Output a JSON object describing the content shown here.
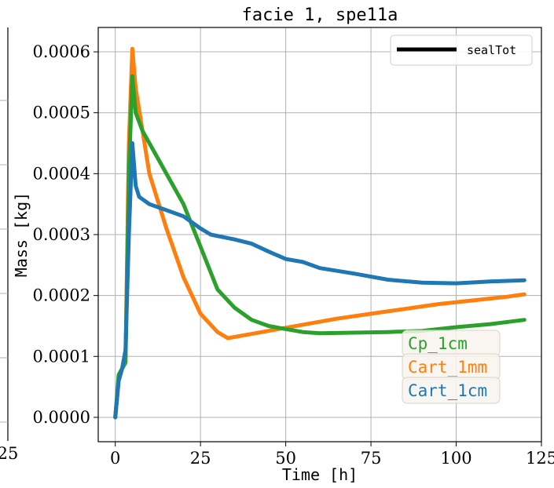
{
  "chart_data": {
    "type": "line",
    "title": "facie 1, spe11a",
    "xlabel": "Time [h]",
    "ylabel": "Mass [kg]",
    "xlim": [
      -5,
      125
    ],
    "ylim": [
      -4e-05,
      0.00064
    ],
    "x_ticks": [
      0,
      25,
      50,
      75,
      100,
      125
    ],
    "x_tick_labels": [
      "0",
      "25",
      "50",
      "75",
      "100",
      "125"
    ],
    "y_ticks": [
      0.0,
      0.0001,
      0.0002,
      0.0003,
      0.0004,
      0.0005,
      0.0006
    ],
    "y_tick_labels": [
      "0.0000",
      "0.0001",
      "0.0002",
      "0.0003",
      "0.0004",
      "0.0005",
      "0.0006"
    ],
    "left_panel_tick_label": "25",
    "grid": true,
    "legend_top": {
      "label": "sealTot",
      "color": "#000000",
      "placement": "top-right"
    },
    "series": [
      {
        "name": "Cp_1cm",
        "color": "#2ca02c",
        "points": [
          [
            0,
            0.0
          ],
          [
            1,
            7e-05
          ],
          [
            2,
            8e-05
          ],
          [
            3,
            9e-05
          ],
          [
            4,
            0.0004
          ],
          [
            5,
            0.00056
          ],
          [
            6,
            0.0005
          ],
          [
            8,
            0.00047
          ],
          [
            10,
            0.00045
          ],
          [
            15,
            0.0004
          ],
          [
            20,
            0.00035
          ],
          [
            25,
            0.00028
          ],
          [
            30,
            0.00021
          ],
          [
            35,
            0.00018
          ],
          [
            40,
            0.00016
          ],
          [
            45,
            0.00015
          ],
          [
            50,
            0.000145
          ],
          [
            55,
            0.00014
          ],
          [
            60,
            0.000138
          ],
          [
            70,
            0.000139
          ],
          [
            80,
            0.00014
          ],
          [
            90,
            0.000142
          ],
          [
            100,
            0.000148
          ],
          [
            110,
            0.000153
          ],
          [
            120,
            0.00016
          ]
        ]
      },
      {
        "name": "Cart_1mm",
        "color": "#ff7f0e",
        "points": [
          [
            0,
            0.0
          ],
          [
            1,
            6e-05
          ],
          [
            2,
            8e-05
          ],
          [
            3,
            9e-05
          ],
          [
            4,
            0.00045
          ],
          [
            5,
            0.000605
          ],
          [
            6,
            0.00054
          ],
          [
            8,
            0.00047
          ],
          [
            10,
            0.0004
          ],
          [
            15,
            0.00031
          ],
          [
            20,
            0.00023
          ],
          [
            25,
            0.00017
          ],
          [
            30,
            0.00014
          ],
          [
            33,
            0.00013
          ],
          [
            36,
            0.000133
          ],
          [
            45,
            0.000142
          ],
          [
            55,
            0.000152
          ],
          [
            65,
            0.000162
          ],
          [
            75,
            0.00017
          ],
          [
            85,
            0.000178
          ],
          [
            95,
            0.000186
          ],
          [
            105,
            0.000192
          ],
          [
            115,
            0.000198
          ],
          [
            120,
            0.000202
          ]
        ]
      },
      {
        "name": "Cart_1cm",
        "color": "#1f77b4",
        "points": [
          [
            0,
            0.0
          ],
          [
            1,
            6e-05
          ],
          [
            2,
            8e-05
          ],
          [
            3,
            0.00011
          ],
          [
            4,
            0.0003
          ],
          [
            5,
            0.00045
          ],
          [
            6,
            0.00038
          ],
          [
            7,
            0.000362
          ],
          [
            10,
            0.00035
          ],
          [
            15,
            0.00034
          ],
          [
            20,
            0.00033
          ],
          [
            25,
            0.00031
          ],
          [
            28,
            0.0003
          ],
          [
            35,
            0.000292
          ],
          [
            40,
            0.000285
          ],
          [
            45,
            0.000272
          ],
          [
            50,
            0.00026
          ],
          [
            55,
            0.000255
          ],
          [
            60,
            0.000245
          ],
          [
            70,
            0.000236
          ],
          [
            80,
            0.000226
          ],
          [
            90,
            0.000221
          ],
          [
            100,
            0.00022
          ],
          [
            110,
            0.000223
          ],
          [
            120,
            0.000225
          ]
        ]
      }
    ]
  }
}
